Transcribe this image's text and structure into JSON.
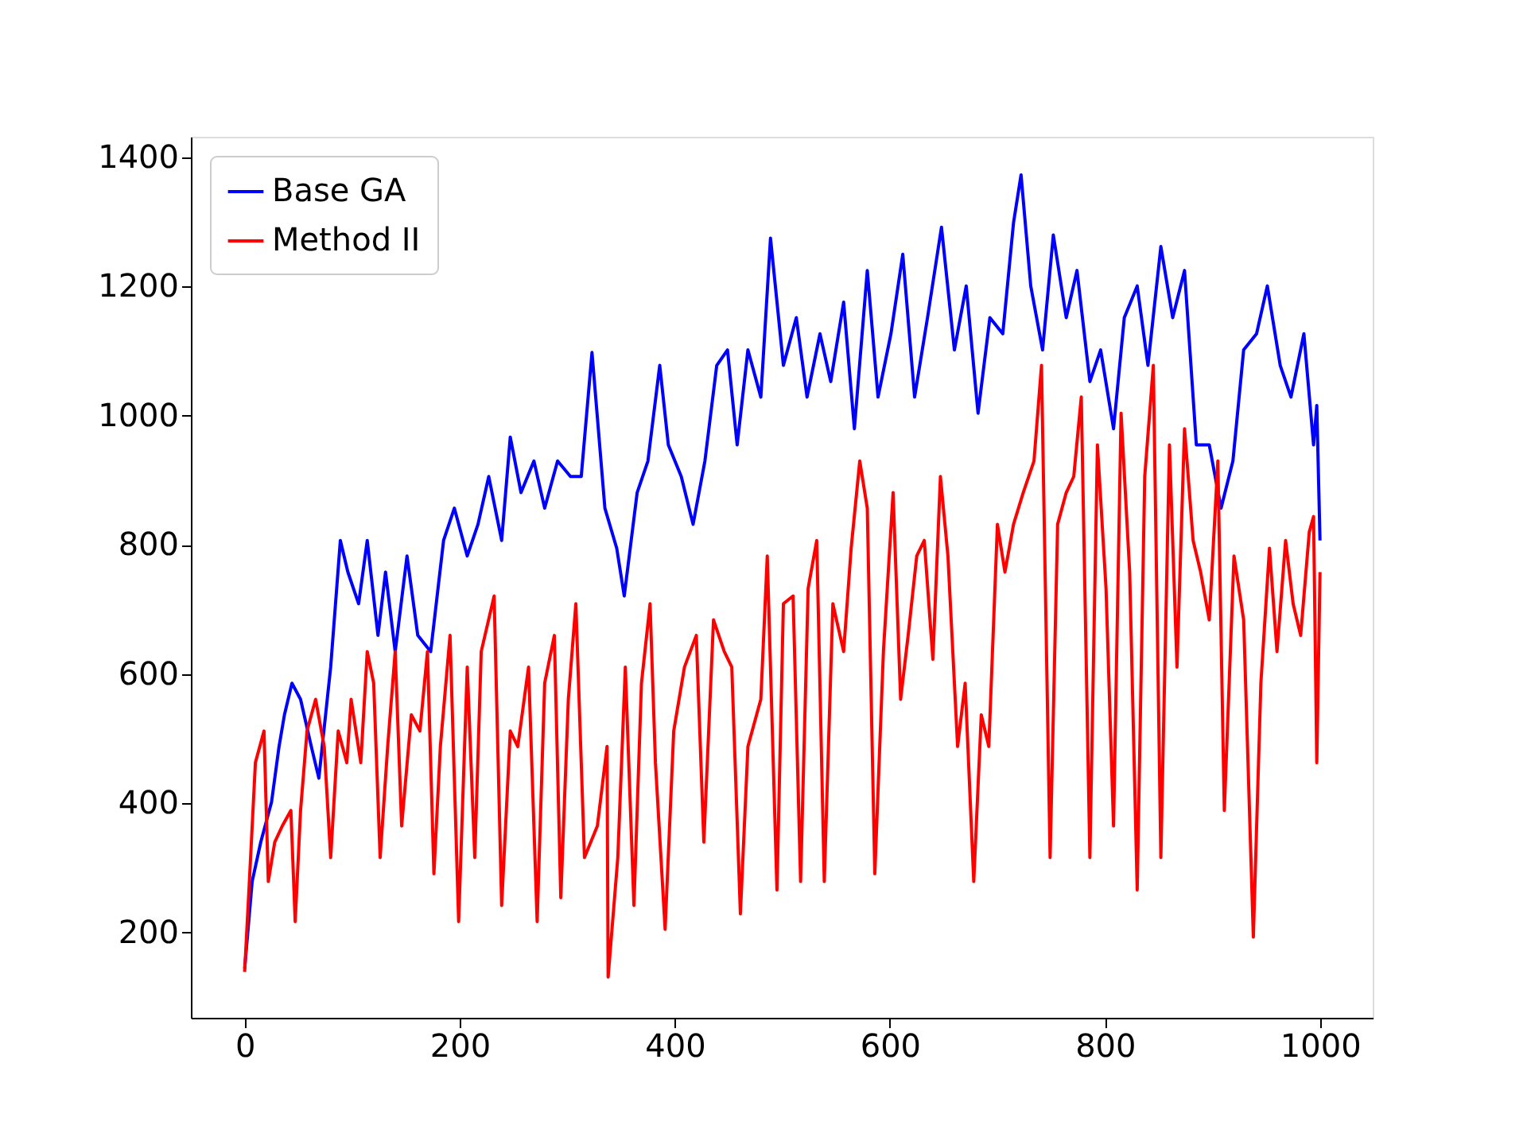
{
  "chart_data": {
    "type": "line",
    "xlim": [
      -50,
      1049
    ],
    "ylim": [
      68,
      1432
    ],
    "xticks": [
      0,
      200,
      400,
      600,
      800,
      1000
    ],
    "yticks": [
      200,
      400,
      600,
      800,
      1000,
      1200,
      1400
    ],
    "grid": false,
    "legend": "top left",
    "marker": "none",
    "line_style": "solid",
    "series": [
      {
        "name": "Base GA",
        "color": "#0000ff",
        "x": [
          0,
          7,
          15,
          25,
          32,
          37,
          44,
          52,
          62,
          69,
          80,
          89,
          96,
          106,
          114,
          124,
          131,
          140,
          151,
          161,
          173,
          185,
          195,
          207,
          217,
          227,
          239,
          247,
          257,
          269,
          279,
          291,
          303,
          313,
          323,
          335,
          346,
          353,
          365,
          375,
          386,
          394,
          406,
          417,
          428,
          439,
          449,
          458,
          468,
          480,
          489,
          501,
          513,
          523,
          535,
          545,
          557,
          567,
          579,
          589,
          601,
          612,
          623,
          635,
          648,
          660,
          671,
          682,
          693,
          705,
          715,
          722,
          731,
          742,
          752,
          764,
          774,
          786,
          796,
          808,
          818,
          830,
          840,
          852,
          863,
          874,
          885,
          897,
          908,
          919,
          929,
          941,
          951,
          963,
          973,
          985,
          994,
          997,
          1000
        ],
        "values": [
          144,
          279,
          340,
          402,
          488,
          537,
          586,
          561,
          488,
          439,
          611,
          807,
          758,
          709,
          807,
          660,
          758,
          635,
          783,
          660,
          635,
          807,
          857,
          783,
          832,
          906,
          807,
          967,
          881,
          930,
          857,
          930,
          906,
          906,
          1098,
          857,
          795,
          721,
          881,
          930,
          1078,
          955,
          906,
          832,
          930,
          1078,
          1102,
          955,
          1102,
          1029,
          1275,
          1078,
          1152,
          1029,
          1127,
          1053,
          1176,
          980,
          1225,
          1029,
          1127,
          1250,
          1029,
          1152,
          1292,
          1102,
          1201,
          1004,
          1152,
          1127,
          1299,
          1373,
          1201,
          1102,
          1280,
          1152,
          1225,
          1053,
          1102,
          980,
          1152,
          1201,
          1078,
          1262,
          1152,
          1225,
          955,
          955,
          857,
          930,
          1102,
          1127,
          1201,
          1078,
          1029,
          1127,
          955,
          1016,
          807
        ]
      },
      {
        "name": "Method II",
        "color": "#ff0000",
        "x": [
          0,
          4,
          10,
          18,
          22,
          28,
          35,
          43,
          47,
          52,
          58,
          66,
          74,
          80,
          87,
          95,
          99,
          108,
          114,
          120,
          126,
          133,
          140,
          146,
          155,
          163,
          170,
          176,
          182,
          191,
          199,
          207,
          214,
          220,
          232,
          239,
          247,
          254,
          264,
          272,
          279,
          288,
          294,
          301,
          308,
          316,
          328,
          337,
          338,
          347,
          354,
          362,
          369,
          377,
          382,
          391,
          399,
          409,
          420,
          427,
          436,
          446,
          453,
          461,
          468,
          480,
          486,
          495,
          501,
          510,
          517,
          524,
          532,
          539,
          547,
          557,
          564,
          572,
          579,
          586,
          594,
          603,
          610,
          617,
          625,
          632,
          640,
          647,
          654,
          663,
          670,
          678,
          685,
          692,
          700,
          707,
          715,
          724,
          734,
          741,
          749,
          756,
          764,
          771,
          778,
          786,
          793,
          801,
          808,
          815,
          823,
          830,
          837,
          845,
          852,
          860,
          867,
          874,
          882,
          889,
          897,
          905,
          911,
          920,
          929,
          938,
          945,
          953,
          960,
          968,
          975,
          982,
          990,
          994,
          997,
          1000
        ],
        "values": [
          139,
          266,
          463,
          512,
          279,
          340,
          365,
          389,
          217,
          389,
          512,
          561,
          488,
          316,
          512,
          463,
          561,
          463,
          635,
          586,
          316,
          488,
          635,
          365,
          537,
          512,
          635,
          291,
          488,
          660,
          217,
          611,
          316,
          635,
          721,
          242,
          512,
          488,
          611,
          217,
          586,
          660,
          254,
          561,
          709,
          316,
          365,
          488,
          131,
          316,
          611,
          242,
          586,
          709,
          463,
          205,
          512,
          611,
          660,
          340,
          684,
          635,
          611,
          229,
          488,
          561,
          783,
          266,
          709,
          721,
          279,
          733,
          807,
          279,
          709,
          635,
          795,
          930,
          857,
          291,
          635,
          881,
          561,
          660,
          783,
          807,
          623,
          906,
          783,
          488,
          586,
          279,
          537,
          488,
          832,
          758,
          832,
          881,
          930,
          1078,
          316,
          832,
          881,
          906,
          1029,
          316,
          955,
          733,
          365,
          1004,
          758,
          266,
          906,
          1078,
          316,
          955,
          611,
          980,
          807,
          758,
          684,
          930,
          389,
          783,
          684,
          193,
          586,
          795,
          635,
          807,
          709,
          660,
          820,
          844,
          463,
          758
        ]
      }
    ]
  }
}
